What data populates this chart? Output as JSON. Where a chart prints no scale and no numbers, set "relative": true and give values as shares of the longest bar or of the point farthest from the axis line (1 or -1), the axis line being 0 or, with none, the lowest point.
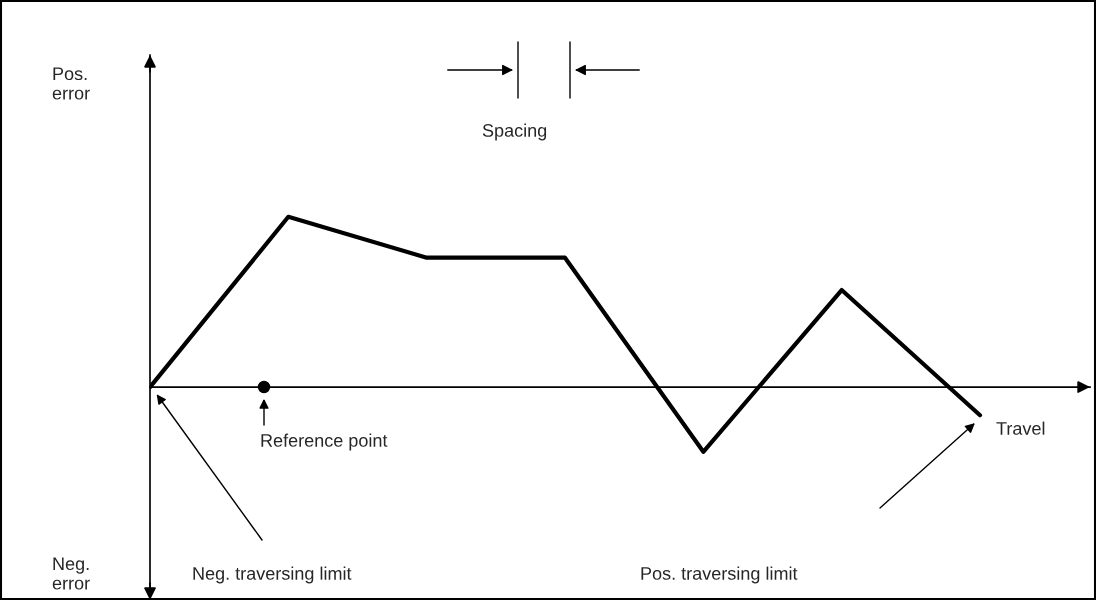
{
  "chart_data": {
    "type": "line",
    "relative": true,
    "marker": "none",
    "line_style": "solid",
    "xlabel": "Travel",
    "categories": [
      null,
      null,
      null,
      null,
      null,
      null,
      null
    ],
    "series": [
      {
        "color": "#000000",
        "values": [
          0,
          1,
          0.76,
          0.76,
          -0.38,
          0.57,
          -0.165
        ]
      }
    ],
    "annotations": [
      "Pos.\nerror",
      "Neg.\nerror",
      "Spacing",
      "Reference point",
      "Neg. traversing limit",
      "Pos. traversing limit"
    ]
  }
}
